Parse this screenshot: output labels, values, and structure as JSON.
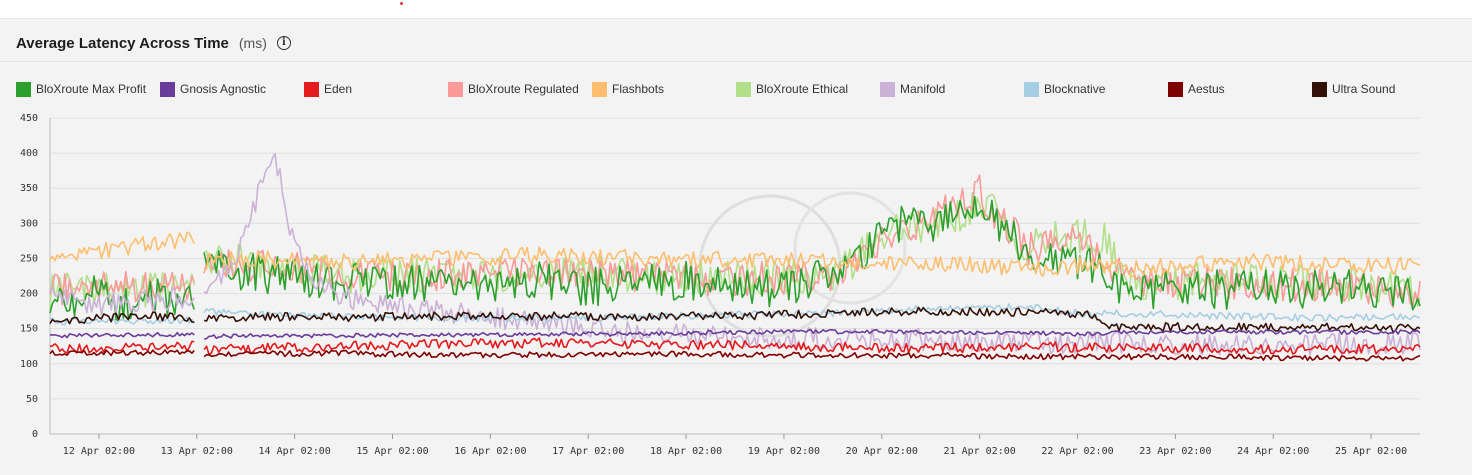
{
  "panel": {
    "title": "Average Latency Across Time",
    "unit": "(ms)",
    "info_glyph": "i"
  },
  "chart_data": {
    "type": "line",
    "title": "Average Latency Across Time",
    "ylabel": "(ms)",
    "ylim": [
      0,
      450
    ],
    "yticks": [
      0,
      50,
      100,
      150,
      200,
      250,
      300,
      350,
      400,
      450
    ],
    "x_range": [
      0,
      14
    ],
    "x_tick_labels": [
      "12 Apr 02:00",
      "13 Apr 02:00",
      "14 Apr 02:00",
      "15 Apr 02:00",
      "16 Apr 02:00",
      "17 Apr 02:00",
      "18 Apr 02:00",
      "19 Apr 02:00",
      "20 Apr 02:00",
      "21 Apr 02:00",
      "22 Apr 02:00",
      "23 Apr 02:00",
      "24 Apr 02:00",
      "25 Apr 02:00"
    ],
    "x_tick_values": [
      0.5,
      1.5,
      2.5,
      3.5,
      4.5,
      5.5,
      6.5,
      7.5,
      8.5,
      9.5,
      10.5,
      11.5,
      12.5,
      13.5
    ],
    "gap": [
      1.48,
      1.56
    ],
    "grid": true,
    "legend_position": "top",
    "series": [
      {
        "name": "BloXroute Max Profit",
        "color": "#2ca02c",
        "points": [
          [
            0,
            190
          ],
          [
            0.4,
            200
          ],
          [
            0.8,
            185
          ],
          [
            1.2,
            195
          ],
          [
            1.48,
            180
          ],
          [
            1.56,
            240
          ],
          [
            2,
            230
          ],
          [
            2.5,
            225
          ],
          [
            3,
            215
          ],
          [
            3.5,
            220
          ],
          [
            4,
            210
          ],
          [
            4.5,
            215
          ],
          [
            5,
            220
          ],
          [
            5.5,
            210
          ],
          [
            6,
            215
          ],
          [
            6.5,
            220
          ],
          [
            7,
            210
          ],
          [
            7.5,
            205
          ],
          [
            8,
            225
          ],
          [
            8.3,
            260
          ],
          [
            8.6,
            300
          ],
          [
            8.9,
            295
          ],
          [
            9.2,
            310
          ],
          [
            9.5,
            330
          ],
          [
            9.7,
            300
          ],
          [
            10,
            255
          ],
          [
            10.5,
            245
          ],
          [
            10.8,
            235
          ],
          [
            11,
            200
          ],
          [
            11.5,
            210
          ],
          [
            12,
            205
          ],
          [
            12.5,
            210
          ],
          [
            13,
            205
          ],
          [
            13.5,
            210
          ],
          [
            14,
            190
          ]
        ]
      },
      {
        "name": "Gnosis Agnostic",
        "color": "#6a3d9a",
        "points": [
          [
            0,
            140
          ],
          [
            1.48,
            142
          ],
          [
            1.56,
            138
          ],
          [
            2,
            140
          ],
          [
            3,
            140
          ],
          [
            4,
            141
          ],
          [
            5,
            142
          ],
          [
            6,
            143
          ],
          [
            7,
            145
          ],
          [
            8,
            146
          ],
          [
            9,
            145
          ],
          [
            10,
            144
          ],
          [
            10.6,
            142
          ],
          [
            11,
            145
          ],
          [
            12,
            146
          ],
          [
            13,
            145
          ],
          [
            14,
            145
          ]
        ]
      },
      {
        "name": "Eden",
        "color": "#e41a1c",
        "points": [
          [
            0,
            122
          ],
          [
            1.48,
            125
          ],
          [
            1.56,
            120
          ],
          [
            2,
            122
          ],
          [
            3,
            125
          ],
          [
            4,
            128
          ],
          [
            5,
            130
          ],
          [
            6,
            128
          ],
          [
            7,
            126
          ],
          [
            8,
            124
          ],
          [
            9,
            122
          ],
          [
            10,
            125
          ],
          [
            11,
            122
          ],
          [
            12,
            122
          ],
          [
            13,
            120
          ],
          [
            14,
            122
          ]
        ]
      },
      {
        "name": "BloXroute Regulated",
        "color": "#fb9a99",
        "points": [
          [
            0,
            205
          ],
          [
            1.48,
            215
          ],
          [
            1.56,
            245
          ],
          [
            2,
            240
          ],
          [
            2.5,
            235
          ],
          [
            3,
            225
          ],
          [
            4,
            225
          ],
          [
            5,
            230
          ],
          [
            6,
            225
          ],
          [
            7,
            220
          ],
          [
            8,
            225
          ],
          [
            8.5,
            275
          ],
          [
            8.9,
            305
          ],
          [
            9.2,
            320
          ],
          [
            9.5,
            345
          ],
          [
            9.7,
            305
          ],
          [
            10,
            265
          ],
          [
            10.5,
            275
          ],
          [
            10.8,
            250
          ],
          [
            11,
            215
          ],
          [
            12,
            215
          ],
          [
            13,
            210
          ],
          [
            14,
            200
          ]
        ]
      },
      {
        "name": "Flashbots",
        "color": "#fdbf6f",
        "points": [
          [
            0,
            245
          ],
          [
            0.5,
            260
          ],
          [
            1,
            270
          ],
          [
            1.48,
            280
          ],
          [
            1.56,
            245
          ],
          [
            2,
            250
          ],
          [
            3,
            245
          ],
          [
            4,
            250
          ],
          [
            5,
            255
          ],
          [
            6,
            250
          ],
          [
            7,
            248
          ],
          [
            8,
            245
          ],
          [
            8.5,
            240
          ],
          [
            9,
            245
          ],
          [
            10,
            235
          ],
          [
            10.5,
            240
          ],
          [
            11,
            235
          ],
          [
            11.5,
            240
          ],
          [
            12,
            245
          ],
          [
            12.5,
            245
          ],
          [
            13,
            240
          ],
          [
            13.5,
            240
          ],
          [
            14,
            240
          ]
        ]
      },
      {
        "name": "BloXroute Ethical",
        "color": "#b2df8a",
        "points": [
          [
            0,
            200
          ],
          [
            0.5,
            210
          ],
          [
            1,
            205
          ],
          [
            1.48,
            210
          ],
          [
            1.56,
            250
          ],
          [
            2,
            245
          ],
          [
            2.5,
            235
          ],
          [
            3,
            225
          ],
          [
            4,
            225
          ],
          [
            5,
            230
          ],
          [
            6,
            225
          ],
          [
            7,
            220
          ],
          [
            8,
            230
          ],
          [
            8.3,
            255
          ],
          [
            8.6,
            295
          ],
          [
            9,
            300
          ],
          [
            9.3,
            315
          ],
          [
            9.6,
            330
          ],
          [
            9.8,
            290
          ],
          [
            10,
            265
          ],
          [
            10.4,
            285
          ],
          [
            10.8,
            275
          ],
          [
            11,
            215
          ],
          [
            12,
            220
          ],
          [
            13,
            215
          ],
          [
            14,
            205
          ]
        ]
      },
      {
        "name": "Manifold",
        "color": "#cab2d6",
        "points": [
          [
            0,
            195
          ],
          [
            0.5,
            185
          ],
          [
            1,
            190
          ],
          [
            1.48,
            195
          ],
          [
            1.56,
            200
          ],
          [
            1.9,
            250
          ],
          [
            2.1,
            330
          ],
          [
            2.3,
            400
          ],
          [
            2.45,
            290
          ],
          [
            2.7,
            220
          ],
          [
            3,
            195
          ],
          [
            3.5,
            180
          ],
          [
            4,
            175
          ],
          [
            4.5,
            165
          ],
          [
            5,
            160
          ],
          [
            5.5,
            150
          ],
          [
            6,
            145
          ],
          [
            6.5,
            140
          ],
          [
            7,
            140
          ],
          [
            8,
            135
          ],
          [
            9,
            135
          ],
          [
            10,
            130
          ],
          [
            11,
            130
          ],
          [
            12,
            128
          ],
          [
            13,
            128
          ],
          [
            14,
            128
          ]
        ]
      },
      {
        "name": "Blocknative",
        "color": "#a6cee3",
        "points": [
          [
            0,
            160
          ],
          [
            1.48,
            162
          ],
          [
            1.56,
            175
          ],
          [
            2,
            172
          ],
          [
            3,
            168
          ],
          [
            4,
            165
          ],
          [
            5,
            165
          ],
          [
            6,
            167
          ],
          [
            7,
            170
          ],
          [
            8,
            172
          ],
          [
            9,
            180
          ],
          [
            10,
            182
          ],
          [
            10.6,
            170
          ],
          [
            11,
            172
          ],
          [
            12,
            168
          ],
          [
            13,
            165
          ],
          [
            14,
            168
          ]
        ]
      },
      {
        "name": "Aestus",
        "color": "#7f0000",
        "points": [
          [
            0,
            115
          ],
          [
            1.48,
            116
          ],
          [
            1.56,
            112
          ],
          [
            2,
            114
          ],
          [
            3,
            115
          ],
          [
            4,
            112
          ],
          [
            5,
            113
          ],
          [
            6,
            114
          ],
          [
            7,
            113
          ],
          [
            8,
            112
          ],
          [
            9,
            112
          ],
          [
            10,
            110
          ],
          [
            11,
            110
          ],
          [
            12,
            110
          ],
          [
            13,
            108
          ],
          [
            14,
            108
          ]
        ]
      },
      {
        "name": "Ultra Sound",
        "color": "#331106",
        "points": [
          [
            0,
            160
          ],
          [
            0.5,
            165
          ],
          [
            1,
            168
          ],
          [
            1.48,
            165
          ],
          [
            1.56,
            165
          ],
          [
            2,
            167
          ],
          [
            3,
            166
          ],
          [
            4,
            168
          ],
          [
            5,
            168
          ],
          [
            6,
            167
          ],
          [
            7,
            168
          ],
          [
            8,
            172
          ],
          [
            9,
            175
          ],
          [
            10,
            174
          ],
          [
            10.6,
            170
          ],
          [
            10.8,
            155
          ],
          [
            11,
            152
          ],
          [
            12,
            153
          ],
          [
            13,
            152
          ],
          [
            14,
            150
          ]
        ]
      }
    ]
  }
}
